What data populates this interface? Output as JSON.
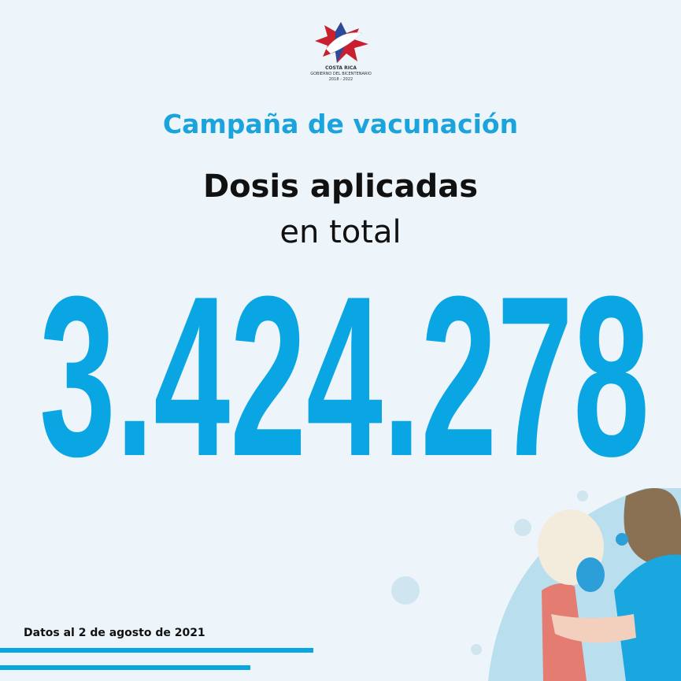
{
  "logo": {
    "line1": "COSTA RICA",
    "line2": "GOBIERNO DEL BICENTENARIO",
    "line3": "2018 - 2022",
    "icon": "costa-rica-bicentenario-star-logo"
  },
  "header": {
    "campaign": "Campaña de vacunación",
    "title_bold": "Dosis aplicadas",
    "title_regular": "en total"
  },
  "main": {
    "total_doses": "3.424.278"
  },
  "footer": {
    "date_note": "Datos al 2 de agosto de 2021"
  },
  "colors": {
    "accent": "#0aa6e3",
    "background": "#edf5fa",
    "text": "#111111"
  }
}
